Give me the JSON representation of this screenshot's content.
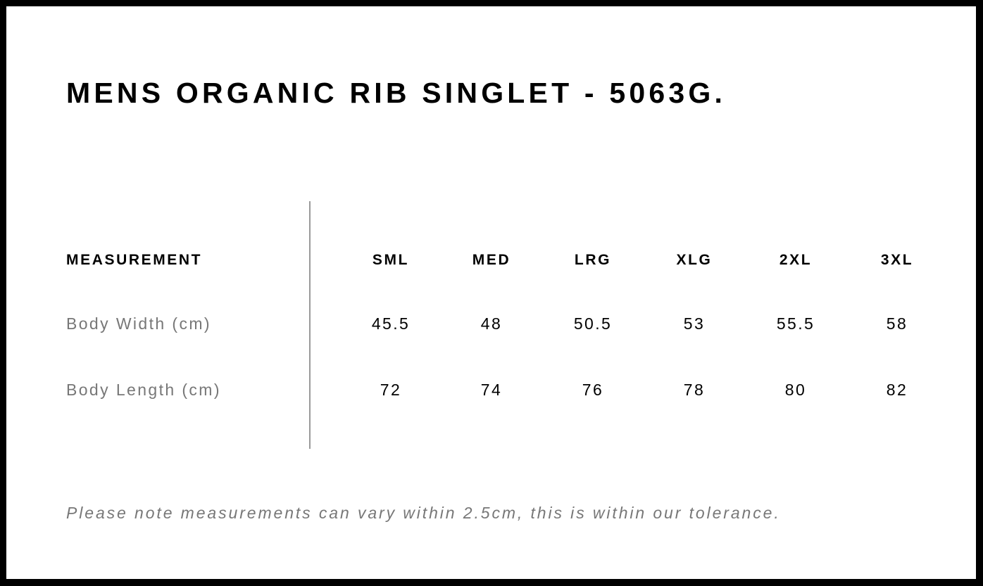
{
  "title": "MENS ORGANIC RIB SINGLET - 5063G.",
  "table": {
    "header_label": "MEASUREMENT",
    "sizes": [
      "SML",
      "MED",
      "LRG",
      "XLG",
      "2XL",
      "3XL"
    ],
    "rows": [
      {
        "label": "Body Width (cm)",
        "values": [
          "45.5",
          "48",
          "50.5",
          "53",
          "55.5",
          "58"
        ]
      },
      {
        "label": "Body Length (cm)",
        "values": [
          "72",
          "74",
          "76",
          "78",
          "80",
          "82"
        ]
      }
    ]
  },
  "note": "Please note measurements can vary within 2.5cm, this is within our tolerance."
}
